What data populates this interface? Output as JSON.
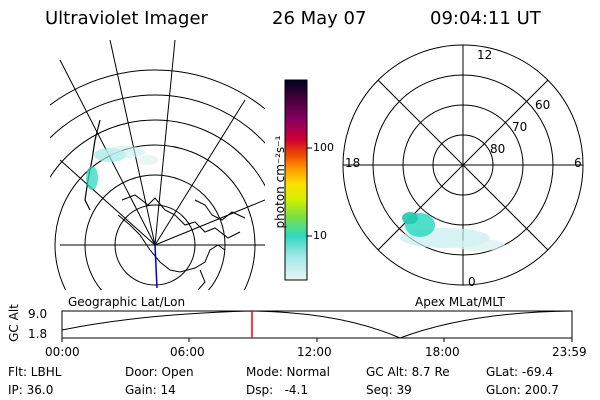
{
  "header": {
    "instrument": "Ultraviolet Imager",
    "date": "26 May 07",
    "time": "09:04:11 UT"
  },
  "panels": {
    "geo_label": "Geographic Lat/Lon",
    "apex_label": "Apex MLat/MLT",
    "mlt_labels": {
      "top": "12",
      "left": "18",
      "right": "6",
      "bottom": "0"
    },
    "mlat_labels": [
      "60",
      "70",
      "80"
    ]
  },
  "colorbar": {
    "unit_label": "photon cm⁻²s⁻¹",
    "tick_labels": [
      "100",
      "10"
    ],
    "colors": [
      "#000020",
      "#4a0040",
      "#8a0060",
      "#d00030",
      "#f05000",
      "#ffa000",
      "#ffe000",
      "#d0f000",
      "#80e040",
      "#30d8c0",
      "#a0e8e8",
      "#e8f4f4"
    ]
  },
  "altitude_plot": {
    "ylabel": "GC Alt",
    "yticks": [
      "9.0",
      "1.8"
    ],
    "xticks": [
      "00:00",
      "06:00",
      "12:00",
      "18:00",
      "23:59"
    ],
    "current_time_color": "#ff0000"
  },
  "status": {
    "row1": {
      "flt": "Flt: LBHL",
      "door": "Door: Open",
      "mode": "Mode: Normal",
      "gc_alt": "GC Alt: 8.7 Re",
      "glat": "GLat: -69.4"
    },
    "row2": {
      "ip": "IP: 36.0",
      "gain": "Gain: 14",
      "dsp": "Dsp:   -4.1",
      "seq": "Seq: 39",
      "glon": "GLon: 200.7"
    }
  }
}
